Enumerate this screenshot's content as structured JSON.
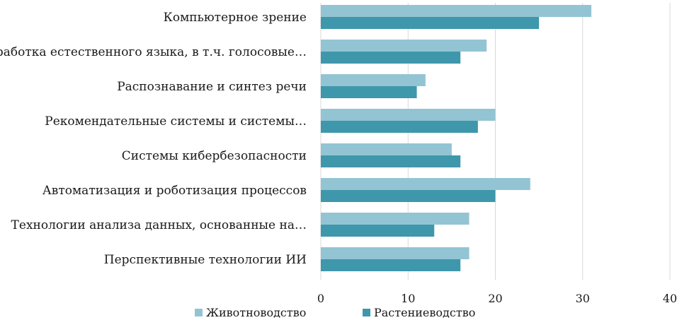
{
  "chart_data": {
    "type": "bar",
    "orientation": "horizontal",
    "categories": [
      "Компьютерное зрение",
      "Обработка естественного языка, в т.ч. голосовые…",
      "Распознавание и синтез речи",
      "Рекомендательные системы и системы…",
      "Системы кибербезопасности",
      "Автоматизация и роботизация процессов",
      "Технологии анализа данных, основанные на…",
      "Перспективные технологии ИИ"
    ],
    "series": [
      {
        "name": "Животноводство",
        "color": "#93c4d3",
        "values": [
          31,
          19,
          12,
          20,
          15,
          24,
          17,
          17
        ]
      },
      {
        "name": "Растениеводство",
        "color": "#3f97ab",
        "values": [
          25,
          16,
          11,
          18,
          16,
          20,
          13,
          16
        ]
      }
    ],
    "xlim": [
      0,
      40
    ],
    "xticks": [
      "0",
      "10",
      "20",
      "30",
      "40"
    ],
    "grid": true,
    "legend": "bottom",
    "title": "",
    "xlabel": "",
    "ylabel": ""
  }
}
